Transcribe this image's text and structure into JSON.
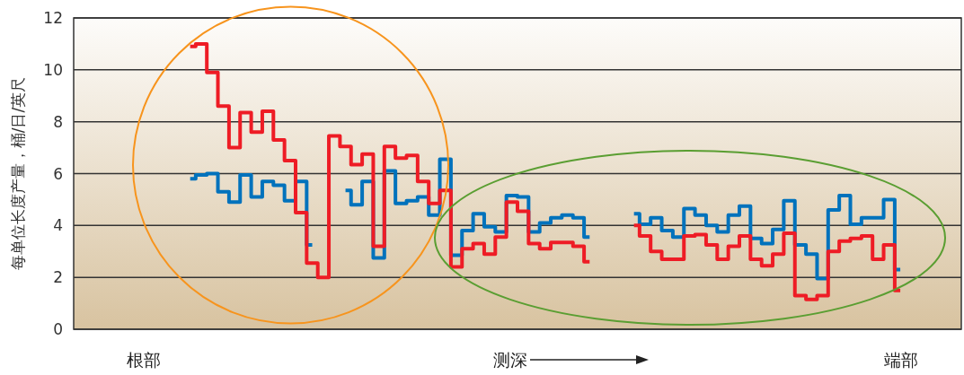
{
  "chart_data": {
    "type": "step",
    "ylabel": "每单位长度产量，桶/日/英尺",
    "annotations": [
      "根部",
      "测深",
      "端部"
    ],
    "categories": [
      null,
      null,
      null,
      null,
      null,
      null,
      null,
      null,
      null,
      null,
      null,
      null,
      null,
      null,
      null,
      null,
      null,
      null,
      null,
      null,
      null,
      null,
      null,
      null,
      null,
      null,
      null,
      null,
      null,
      null,
      null,
      null,
      null,
      null,
      null,
      null,
      null,
      null,
      null,
      null,
      null,
      null,
      null,
      null,
      null,
      null,
      null,
      null,
      null,
      null,
      null,
      null,
      null,
      null,
      null,
      null,
      null,
      null,
      null,
      null,
      null,
      null,
      null,
      null,
      null,
      null,
      null,
      null,
      null,
      null,
      null,
      null,
      null,
      null,
      null,
      null,
      null,
      null,
      null,
      null
    ],
    "ylim": [
      0,
      12
    ],
    "yticks": [
      0,
      2,
      4,
      6,
      8,
      10,
      12
    ],
    "grid": true,
    "line_style": "solid",
    "series": [
      {
        "color": "#0072bc",
        "values": [
          null,
          null,
          null,
          null,
          null,
          null,
          null,
          null,
          null,
          null,
          5.8,
          5.95,
          6.0,
          5.3,
          4.9,
          5.95,
          5.1,
          5.7,
          5.55,
          4.95,
          5.7,
          3.25,
          null,
          null,
          5.35,
          4.8,
          5.7,
          2.75,
          6.1,
          4.85,
          4.95,
          5.1,
          4.4,
          6.55,
          2.85,
          3.8,
          4.45,
          3.95,
          3.75,
          5.15,
          5.1,
          3.75,
          4.1,
          4.3,
          4.4,
          4.3,
          3.55,
          null,
          null,
          null,
          4.45,
          4.05,
          4.3,
          3.8,
          3.55,
          4.65,
          4.4,
          4.0,
          3.75,
          4.4,
          4.75,
          3.5,
          3.3,
          3.85,
          4.95,
          3.25,
          2.9,
          1.95,
          4.6,
          5.15,
          4.05,
          4.3,
          4.3,
          5.0,
          2.3,
          null,
          null,
          null,
          null,
          null
        ]
      },
      {
        "color": "#ee1c25",
        "values": [
          null,
          null,
          null,
          null,
          null,
          null,
          null,
          null,
          null,
          null,
          10.9,
          11.0,
          9.9,
          8.6,
          7.0,
          8.35,
          7.6,
          8.4,
          7.3,
          6.5,
          4.5,
          2.55,
          2.0,
          7.45,
          7.05,
          6.35,
          6.75,
          3.2,
          7.05,
          6.6,
          6.7,
          5.7,
          4.85,
          5.35,
          2.4,
          3.1,
          3.3,
          2.9,
          3.55,
          4.9,
          4.55,
          3.3,
          3.1,
          3.35,
          3.35,
          3.2,
          2.6,
          null,
          null,
          null,
          4.0,
          3.6,
          3.0,
          2.7,
          2.7,
          3.6,
          3.65,
          3.25,
          2.7,
          3.2,
          3.6,
          2.7,
          2.45,
          2.9,
          3.7,
          1.3,
          1.15,
          1.3,
          3.0,
          3.4,
          3.5,
          3.6,
          2.7,
          3.25,
          1.5,
          null,
          null,
          null,
          null,
          null
        ]
      }
    ]
  }
}
